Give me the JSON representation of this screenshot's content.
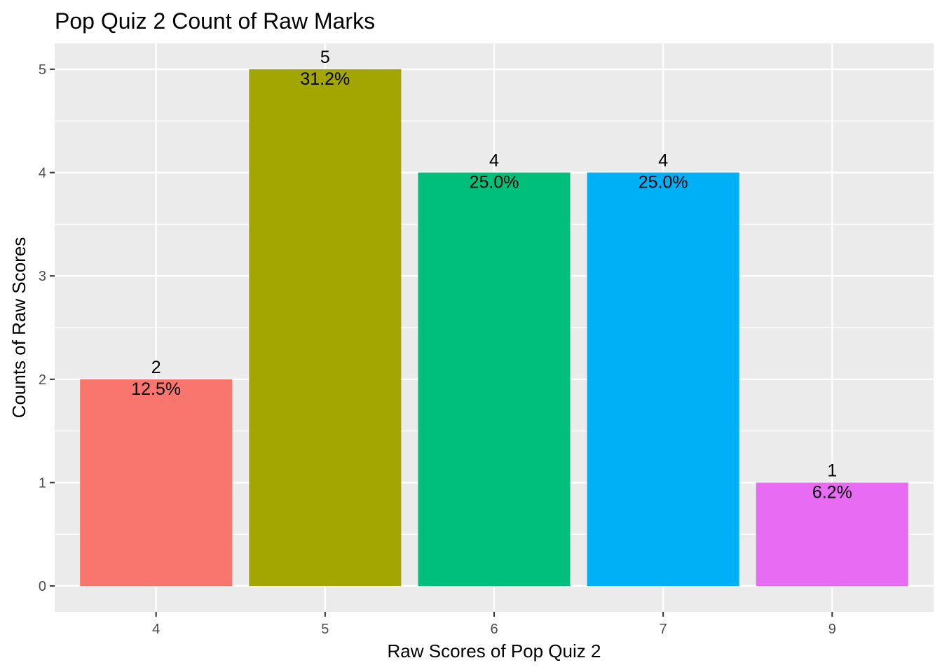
{
  "chart_data": {
    "type": "bar",
    "title": "Pop Quiz 2 Count of Raw Marks",
    "xlabel": "Raw Scores of Pop Quiz 2",
    "ylabel": "Counts of Raw Scores",
    "categories": [
      "4",
      "5",
      "6",
      "7",
      "9"
    ],
    "values": [
      2,
      5,
      4,
      4,
      1
    ],
    "count_labels": [
      "2",
      "5",
      "4",
      "4",
      "1"
    ],
    "percent_labels": [
      "12.5%",
      "31.2%",
      "25.0%",
      "25.0%",
      "6.2%"
    ],
    "colors": [
      "#F8766D",
      "#A3A500",
      "#00BF7D",
      "#00B0F6",
      "#E76BF3"
    ],
    "ylim": [
      -0.25,
      5.25
    ],
    "yticks": [
      0,
      1,
      2,
      3,
      4,
      5
    ],
    "ytick_labels": [
      "0",
      "1",
      "2",
      "3",
      "4",
      "5"
    ],
    "grid": true,
    "legend": "none",
    "panel_background": "#EBEBEB",
    "grid_color": "#FFFFFF"
  }
}
